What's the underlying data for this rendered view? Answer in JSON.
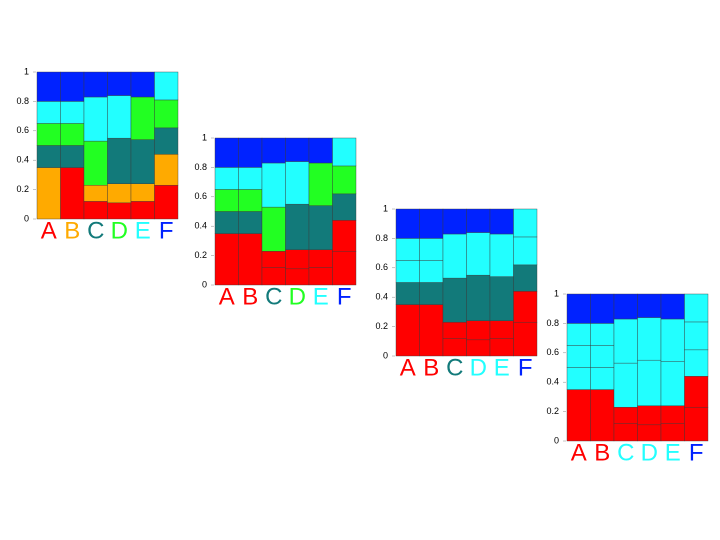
{
  "chart_data": [
    {
      "type": "bar",
      "stacked": true,
      "categories": [
        "A",
        "B",
        "C",
        "D",
        "E",
        "F"
      ],
      "category_colors": [
        "#ff0000",
        "#ffaa00",
        "#127a7a",
        "#22ff22",
        "#22ffff",
        "#0022ff"
      ],
      "ylim": [
        0,
        1
      ],
      "yticks": [
        0,
        0.2,
        0.4,
        0.6,
        0.8,
        1
      ],
      "series": [
        {
          "values": [
            0.35,
            0.35,
            0.12,
            0.11,
            0.12,
            0.23
          ],
          "colors": [
            "#ffaa00",
            "#ff0000",
            "#ff0000",
            "#ff0000",
            "#ff0000",
            "#ff0000"
          ]
        },
        {
          "values": [
            0.15,
            0.15,
            0.11,
            0.13,
            0.12,
            0.21
          ],
          "colors": [
            "#127a7a",
            "#127a7a",
            "#ffaa00",
            "#ffaa00",
            "#ffaa00",
            "#ffaa00"
          ]
        },
        {
          "values": [
            0.15,
            0.15,
            0.3,
            0.31,
            0.3,
            0.18
          ],
          "colors": [
            "#22ff22",
            "#22ff22",
            "#22ff22",
            "#127a7a",
            "#127a7a",
            "#127a7a"
          ]
        },
        {
          "values": [
            0.15,
            0.15,
            0.3,
            0.29,
            0.29,
            0.19
          ],
          "colors": [
            "#22ffff",
            "#22ffff",
            "#22ffff",
            "#22ffff",
            "#22ff22",
            "#22ff22"
          ]
        },
        {
          "values": [
            0.2,
            0.2,
            0.17,
            0.16,
            0.17,
            0.19
          ],
          "colors": [
            "#0022ff",
            "#0022ff",
            "#0022ff",
            "#0022ff",
            "#0022ff",
            "#22ffff"
          ]
        }
      ]
    },
    {
      "type": "bar",
      "stacked": true,
      "categories": [
        "A",
        "B",
        "C",
        "D",
        "E",
        "F"
      ],
      "category_colors": [
        "#ff0000",
        "#ff0000",
        "#127a7a",
        "#22ff22",
        "#22ffff",
        "#0022ff"
      ],
      "ylim": [
        0,
        1
      ],
      "yticks": [
        0,
        0.2,
        0.4,
        0.6,
        0.8,
        1
      ],
      "series": [
        {
          "values": [
            0.35,
            0.35,
            0.12,
            0.11,
            0.12,
            0.23
          ],
          "colors": [
            "#ff0000",
            "#ff0000",
            "#ff0000",
            "#ff0000",
            "#ff0000",
            "#ff0000"
          ]
        },
        {
          "values": [
            0.15,
            0.15,
            0.11,
            0.13,
            0.12,
            0.21
          ],
          "colors": [
            "#127a7a",
            "#127a7a",
            "#ff0000",
            "#ff0000",
            "#ff0000",
            "#ff0000"
          ]
        },
        {
          "values": [
            0.15,
            0.15,
            0.3,
            0.31,
            0.3,
            0.18
          ],
          "colors": [
            "#22ff22",
            "#22ff22",
            "#22ff22",
            "#127a7a",
            "#127a7a",
            "#127a7a"
          ]
        },
        {
          "values": [
            0.15,
            0.15,
            0.3,
            0.29,
            0.29,
            0.19
          ],
          "colors": [
            "#22ffff",
            "#22ffff",
            "#22ffff",
            "#22ffff",
            "#22ff22",
            "#22ff22"
          ]
        },
        {
          "values": [
            0.2,
            0.2,
            0.17,
            0.16,
            0.17,
            0.19
          ],
          "colors": [
            "#0022ff",
            "#0022ff",
            "#0022ff",
            "#0022ff",
            "#0022ff",
            "#22ffff"
          ]
        }
      ]
    },
    {
      "type": "bar",
      "stacked": true,
      "categories": [
        "A",
        "B",
        "C",
        "D",
        "E",
        "F"
      ],
      "category_colors": [
        "#ff0000",
        "#ff0000",
        "#127a7a",
        "#22ffff",
        "#22ffff",
        "#0022ff"
      ],
      "ylim": [
        0,
        1
      ],
      "yticks": [
        0,
        0.2,
        0.4,
        0.6,
        0.8,
        1
      ],
      "series": [
        {
          "values": [
            0.35,
            0.35,
            0.12,
            0.11,
            0.12,
            0.23
          ],
          "colors": [
            "#ff0000",
            "#ff0000",
            "#ff0000",
            "#ff0000",
            "#ff0000",
            "#ff0000"
          ]
        },
        {
          "values": [
            0.15,
            0.15,
            0.11,
            0.13,
            0.12,
            0.21
          ],
          "colors": [
            "#127a7a",
            "#127a7a",
            "#ff0000",
            "#ff0000",
            "#ff0000",
            "#ff0000"
          ]
        },
        {
          "values": [
            0.15,
            0.15,
            0.3,
            0.31,
            0.3,
            0.18
          ],
          "colors": [
            "#22ffff",
            "#22ffff",
            "#127a7a",
            "#127a7a",
            "#127a7a",
            "#127a7a"
          ]
        },
        {
          "values": [
            0.15,
            0.15,
            0.3,
            0.29,
            0.29,
            0.19
          ],
          "colors": [
            "#22ffff",
            "#22ffff",
            "#22ffff",
            "#22ffff",
            "#22ffff",
            "#22ffff"
          ]
        },
        {
          "values": [
            0.2,
            0.2,
            0.17,
            0.16,
            0.17,
            0.19
          ],
          "colors": [
            "#0022ff",
            "#0022ff",
            "#0022ff",
            "#0022ff",
            "#0022ff",
            "#22ffff"
          ]
        }
      ]
    },
    {
      "type": "bar",
      "stacked": true,
      "categories": [
        "A",
        "B",
        "C",
        "D",
        "E",
        "F"
      ],
      "category_colors": [
        "#ff0000",
        "#ff0000",
        "#22ffff",
        "#22ffff",
        "#22ffff",
        "#0022ff"
      ],
      "ylim": [
        0,
        1
      ],
      "yticks": [
        0,
        0.2,
        0.4,
        0.6,
        0.8,
        1
      ],
      "series": [
        {
          "values": [
            0.35,
            0.35,
            0.12,
            0.11,
            0.12,
            0.23
          ],
          "colors": [
            "#ff0000",
            "#ff0000",
            "#ff0000",
            "#ff0000",
            "#ff0000",
            "#ff0000"
          ]
        },
        {
          "values": [
            0.15,
            0.15,
            0.11,
            0.13,
            0.12,
            0.21
          ],
          "colors": [
            "#22ffff",
            "#22ffff",
            "#ff0000",
            "#ff0000",
            "#ff0000",
            "#ff0000"
          ]
        },
        {
          "values": [
            0.15,
            0.15,
            0.3,
            0.31,
            0.3,
            0.18
          ],
          "colors": [
            "#22ffff",
            "#22ffff",
            "#22ffff",
            "#22ffff",
            "#22ffff",
            "#22ffff"
          ]
        },
        {
          "values": [
            0.15,
            0.15,
            0.3,
            0.29,
            0.29,
            0.19
          ],
          "colors": [
            "#22ffff",
            "#22ffff",
            "#22ffff",
            "#22ffff",
            "#22ffff",
            "#22ffff"
          ]
        },
        {
          "values": [
            0.2,
            0.2,
            0.17,
            0.16,
            0.17,
            0.19
          ],
          "colors": [
            "#0022ff",
            "#0022ff",
            "#0022ff",
            "#0022ff",
            "#0022ff",
            "#22ffff"
          ]
        }
      ]
    }
  ]
}
